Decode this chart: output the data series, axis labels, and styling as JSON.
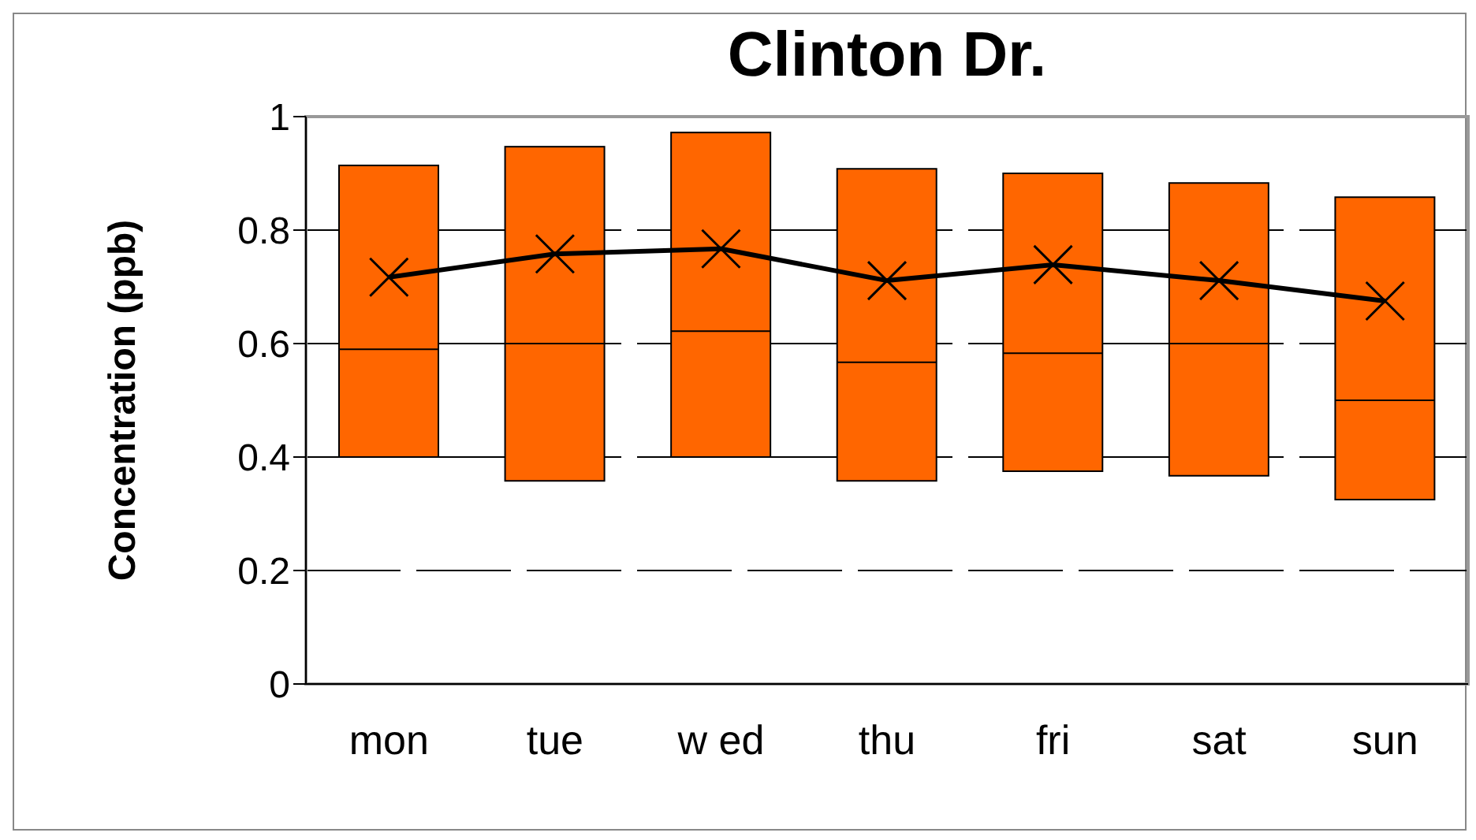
{
  "chart_data": {
    "type": "box",
    "title": "Clinton Dr.",
    "ylabel": "Concentration (ppb)",
    "categories": [
      "mon",
      "tue",
      "w ed",
      "thu",
      "fri",
      "sat",
      "sun"
    ],
    "color": "#ff6600",
    "ylim": [
      0,
      1
    ],
    "yticks": [
      0,
      0.2,
      0.4,
      0.6,
      0.8,
      1
    ],
    "grid": "y",
    "boxes": [
      {
        "low": 0.4,
        "q1": 0.4,
        "median": 0.59,
        "q3": 0.914,
        "high": 0.914
      },
      {
        "low": 0.358,
        "q1": 0.358,
        "median": 0.6,
        "q3": 0.947,
        "high": 0.947
      },
      {
        "low": 0.4,
        "q1": 0.4,
        "median": 0.622,
        "q3": 0.972,
        "high": 0.972
      },
      {
        "low": 0.358,
        "q1": 0.358,
        "median": 0.567,
        "q3": 0.908,
        "high": 0.908
      },
      {
        "low": 0.375,
        "q1": 0.375,
        "median": 0.583,
        "q3": 0.9,
        "high": 0.9
      },
      {
        "low": 0.367,
        "q1": 0.367,
        "median": 0.6,
        "q3": 0.883,
        "high": 0.883
      },
      {
        "low": 0.325,
        "q1": 0.325,
        "median": 0.5,
        "q3": 0.858,
        "high": 0.858
      }
    ],
    "series": [
      {
        "type": "line",
        "color": "#000000",
        "marker": "cross",
        "line_style": "solid",
        "values": [
          0.717,
          0.758,
          0.767,
          0.711,
          0.739,
          0.711,
          0.675
        ]
      }
    ]
  }
}
